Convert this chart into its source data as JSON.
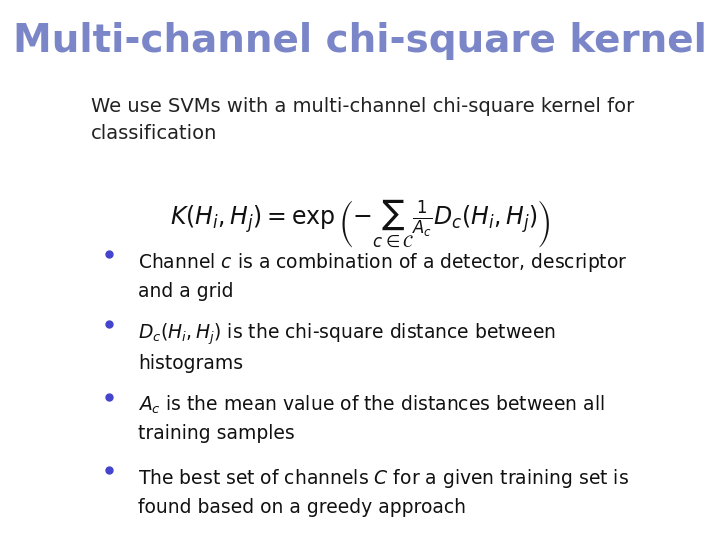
{
  "title": "Multi-channel chi-square kernel",
  "title_color": "#7b86c8",
  "title_fontsize": 28,
  "title_bold": true,
  "bg_color": "#ffffff",
  "intro_text": "We use SVMs with a multi-channel chi-square kernel for\nclassification",
  "intro_fontsize": 14,
  "intro_color": "#222222",
  "formula": "K(H_i, H_j) = \\exp\\left(- \\sum_{c \\in \\mathcal{C}} \\frac{1}{A_c} D_c(H_i, H_j)\\right)",
  "formula_fontsize": 16,
  "formula_color": "#111111",
  "bullet_color": "#4444cc",
  "bullet_fontsize": 13.5,
  "bullet_text_color": "#111111",
  "bullets": [
    "Channel $c$ is a combination of a detector, descriptor\nand a grid",
    "$D_c(H_i, H_j)$ is the chi-square distance between\nhistograms",
    "$A_c$ is the mean value of the distances between all\ntraining samples",
    "The best set of channels $C$ for a given training set is\nfound based on a greedy approach"
  ]
}
